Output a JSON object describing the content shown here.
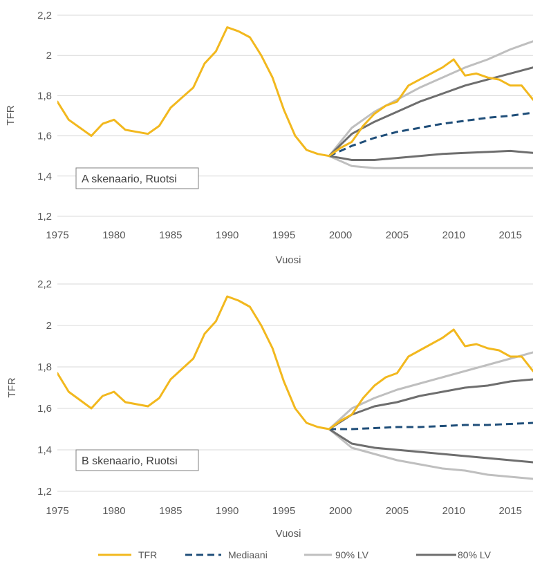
{
  "chart_data": [
    {
      "type": "line",
      "annotation": "A skenaario, Ruotsi",
      "xlabel": "Vuosi",
      "ylabel": "TFR",
      "xlim": [
        1975,
        2017
      ],
      "ylim": [
        1.2,
        2.2
      ],
      "x_ticks": [
        "1975",
        "1980",
        "1985",
        "1990",
        "1995",
        "2000",
        "2005",
        "2010",
        "2015"
      ],
      "y_ticks": [
        "1,2",
        "1,4",
        "1,6",
        "1,8",
        "2",
        "2,2"
      ],
      "grid": true,
      "series": [
        {
          "name": "TFR",
          "color": "#F2B81E",
          "style": "solid",
          "x": [
            1975,
            1976,
            1977,
            1978,
            1979,
            1980,
            1981,
            1982,
            1983,
            1984,
            1985,
            1986,
            1987,
            1988,
            1989,
            1990,
            1991,
            1992,
            1993,
            1994,
            1995,
            1996,
            1997,
            1998,
            1999,
            2000,
            2001,
            2002,
            2003,
            2004,
            2005,
            2006,
            2007,
            2008,
            2009,
            2010,
            2011,
            2012,
            2013,
            2014,
            2015,
            2016,
            2017
          ],
          "y": [
            1.77,
            1.68,
            1.64,
            1.6,
            1.66,
            1.68,
            1.63,
            1.62,
            1.61,
            1.65,
            1.74,
            1.79,
            1.84,
            1.96,
            2.02,
            2.14,
            2.12,
            2.09,
            2.0,
            1.89,
            1.73,
            1.6,
            1.53,
            1.51,
            1.5,
            1.54,
            1.57,
            1.65,
            1.71,
            1.75,
            1.77,
            1.85,
            1.88,
            1.91,
            1.94,
            1.98,
            1.9,
            1.91,
            1.89,
            1.88,
            1.85,
            1.85,
            1.78
          ]
        },
        {
          "name": "Mediaani",
          "color": "#1F4E79",
          "style": "dashed",
          "x": [
            1999,
            2001,
            2003,
            2005,
            2007,
            2009,
            2011,
            2013,
            2015,
            2017
          ],
          "y": [
            1.5,
            1.55,
            1.59,
            1.62,
            1.64,
            1.66,
            1.675,
            1.69,
            1.7,
            1.715
          ]
        },
        {
          "name": "90% LV",
          "color": "#BFBFBF",
          "style": "solid",
          "x": [
            1999,
            2001,
            2003,
            2005,
            2007,
            2009,
            2011,
            2013,
            2015,
            2017
          ],
          "y": [
            1.5,
            1.64,
            1.72,
            1.78,
            1.84,
            1.89,
            1.94,
            1.98,
            2.03,
            2.07
          ]
        },
        {
          "name": "90% LV",
          "color": "#BFBFBF",
          "style": "solid",
          "x": [
            1999,
            2001,
            2003,
            2005,
            2007,
            2009,
            2011,
            2013,
            2015,
            2017
          ],
          "y": [
            1.5,
            1.45,
            1.44,
            1.44,
            1.44,
            1.44,
            1.44,
            1.44,
            1.44,
            1.44
          ]
        },
        {
          "name": "80% LV",
          "color": "#6E6E6E",
          "style": "solid",
          "x": [
            1999,
            2001,
            2003,
            2005,
            2007,
            2009,
            2011,
            2013,
            2015,
            2017
          ],
          "y": [
            1.5,
            1.61,
            1.67,
            1.72,
            1.77,
            1.81,
            1.85,
            1.88,
            1.91,
            1.94
          ]
        },
        {
          "name": "80% LV",
          "color": "#6E6E6E",
          "style": "solid",
          "x": [
            1999,
            2001,
            2003,
            2005,
            2007,
            2009,
            2011,
            2013,
            2015,
            2017
          ],
          "y": [
            1.5,
            1.48,
            1.48,
            1.49,
            1.5,
            1.51,
            1.515,
            1.52,
            1.525,
            1.515
          ]
        }
      ]
    },
    {
      "type": "line",
      "annotation": "B skenaario, Ruotsi",
      "xlabel": "Vuosi",
      "ylabel": "TFR",
      "xlim": [
        1975,
        2017
      ],
      "ylim": [
        1.2,
        2.2
      ],
      "x_ticks": [
        "1975",
        "1980",
        "1985",
        "1990",
        "1995",
        "2000",
        "2005",
        "2010",
        "2015"
      ],
      "y_ticks": [
        "1,2",
        "1,4",
        "1,6",
        "1,8",
        "2",
        "2,2"
      ],
      "grid": true,
      "series": [
        {
          "name": "TFR",
          "color": "#F2B81E",
          "style": "solid",
          "x": [
            1975,
            1976,
            1977,
            1978,
            1979,
            1980,
            1981,
            1982,
            1983,
            1984,
            1985,
            1986,
            1987,
            1988,
            1989,
            1990,
            1991,
            1992,
            1993,
            1994,
            1995,
            1996,
            1997,
            1998,
            1999,
            2000,
            2001,
            2002,
            2003,
            2004,
            2005,
            2006,
            2007,
            2008,
            2009,
            2010,
            2011,
            2012,
            2013,
            2014,
            2015,
            2016,
            2017
          ],
          "y": [
            1.77,
            1.68,
            1.64,
            1.6,
            1.66,
            1.68,
            1.63,
            1.62,
            1.61,
            1.65,
            1.74,
            1.79,
            1.84,
            1.96,
            2.02,
            2.14,
            2.12,
            2.09,
            2.0,
            1.89,
            1.73,
            1.6,
            1.53,
            1.51,
            1.5,
            1.54,
            1.57,
            1.65,
            1.71,
            1.75,
            1.77,
            1.85,
            1.88,
            1.91,
            1.94,
            1.98,
            1.9,
            1.91,
            1.89,
            1.88,
            1.85,
            1.85,
            1.78
          ]
        },
        {
          "name": "Mediaani",
          "color": "#1F4E79",
          "style": "dashed",
          "x": [
            1999,
            2001,
            2003,
            2005,
            2007,
            2009,
            2011,
            2013,
            2015,
            2017
          ],
          "y": [
            1.5,
            1.5,
            1.505,
            1.51,
            1.51,
            1.515,
            1.52,
            1.52,
            1.525,
            1.53
          ]
        },
        {
          "name": "90% LV",
          "color": "#BFBFBF",
          "style": "solid",
          "x": [
            1999,
            2001,
            2003,
            2005,
            2007,
            2009,
            2011,
            2013,
            2015,
            2017
          ],
          "y": [
            1.5,
            1.6,
            1.65,
            1.69,
            1.72,
            1.75,
            1.78,
            1.81,
            1.84,
            1.87
          ]
        },
        {
          "name": "90% LV",
          "color": "#BFBFBF",
          "style": "solid",
          "x": [
            1999,
            2001,
            2003,
            2005,
            2007,
            2009,
            2011,
            2013,
            2015,
            2017
          ],
          "y": [
            1.5,
            1.41,
            1.38,
            1.35,
            1.33,
            1.31,
            1.3,
            1.28,
            1.27,
            1.26
          ]
        },
        {
          "name": "80% LV",
          "color": "#6E6E6E",
          "style": "solid",
          "x": [
            1999,
            2001,
            2003,
            2005,
            2007,
            2009,
            2011,
            2013,
            2015,
            2017
          ],
          "y": [
            1.5,
            1.57,
            1.61,
            1.63,
            1.66,
            1.68,
            1.7,
            1.71,
            1.73,
            1.74
          ]
        },
        {
          "name": "80% LV",
          "color": "#6E6E6E",
          "style": "solid",
          "x": [
            1999,
            2001,
            2003,
            2005,
            2007,
            2009,
            2011,
            2013,
            2015,
            2017
          ],
          "y": [
            1.5,
            1.43,
            1.41,
            1.4,
            1.39,
            1.38,
            1.37,
            1.36,
            1.35,
            1.34
          ]
        }
      ]
    }
  ],
  "legend": {
    "placement": "bottom",
    "items": [
      {
        "label": "TFR",
        "color": "#F2B81E",
        "style": "solid"
      },
      {
        "label": "Mediaani",
        "color": "#1F4E79",
        "style": "dashed"
      },
      {
        "label": "90% LV",
        "color": "#BFBFBF",
        "style": "solid"
      },
      {
        "label": "80% LV",
        "color": "#6E6E6E",
        "style": "solid"
      }
    ]
  }
}
